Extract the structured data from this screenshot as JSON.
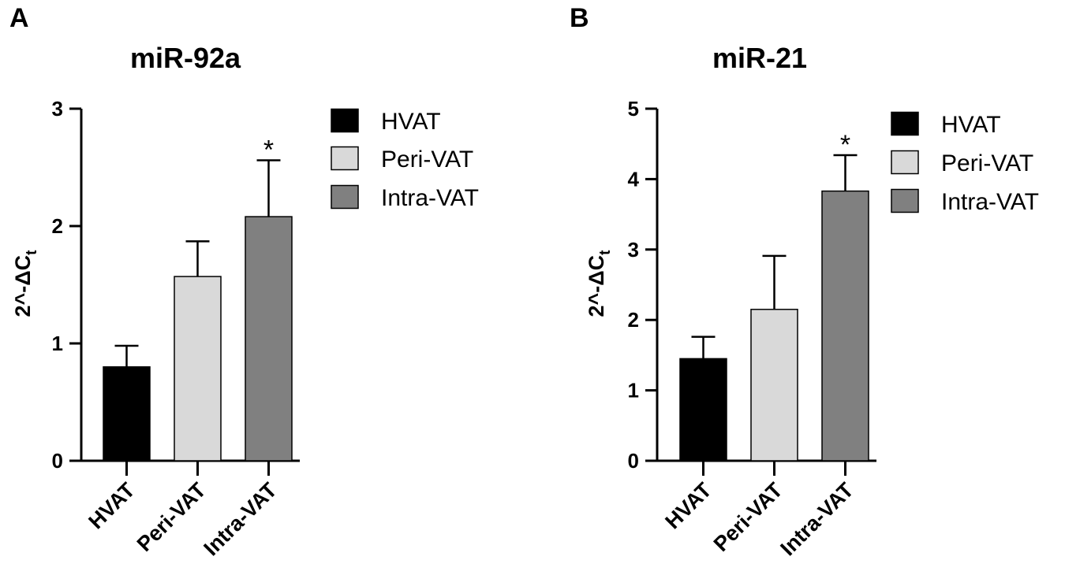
{
  "chart_data": [
    {
      "type": "bar",
      "panel": "A",
      "title": "miR-92a",
      "ylabel": {
        "base": "2^-ΔC",
        "subscript": "t"
      },
      "ylim": [
        0,
        3
      ],
      "yticks": [
        0,
        1,
        2,
        3
      ],
      "categories": [
        "HVAT",
        "Peri-VAT",
        "Intra-VAT"
      ],
      "values": [
        0.8,
        1.57,
        2.08
      ],
      "errors": [
        0.18,
        0.3,
        0.48
      ],
      "significance": [
        "",
        "",
        "*"
      ],
      "colors": [
        "#000000",
        "#d9d9d9",
        "#808080"
      ],
      "legend": [
        "HVAT",
        "Peri-VAT",
        "Intra-VAT"
      ],
      "legend_position": "right"
    },
    {
      "type": "bar",
      "panel": "B",
      "title": "miR-21",
      "ylabel": {
        "base": "2^-ΔC",
        "subscript": "t"
      },
      "ylim": [
        0,
        5
      ],
      "yticks": [
        0,
        1,
        2,
        3,
        4,
        5
      ],
      "categories": [
        "HVAT",
        "Peri-VAT",
        "Intra-VAT"
      ],
      "values": [
        1.45,
        2.15,
        3.83
      ],
      "errors": [
        0.31,
        0.76,
        0.51
      ],
      "significance": [
        "",
        "",
        "*"
      ],
      "colors": [
        "#000000",
        "#d9d9d9",
        "#808080"
      ],
      "legend": [
        "HVAT",
        "Peri-VAT",
        "Intra-VAT"
      ],
      "legend_position": "right"
    }
  ]
}
